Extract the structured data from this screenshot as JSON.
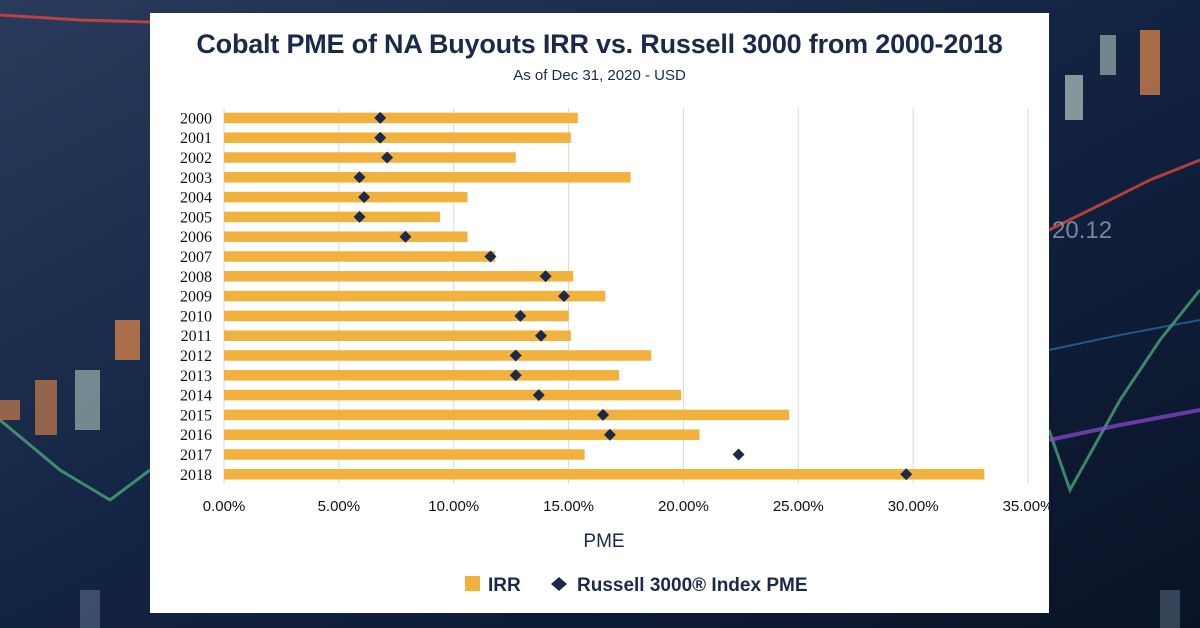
{
  "colors": {
    "irr": "#f2b13c",
    "pme": "#1b2a4a",
    "grid": "#d9d9d9",
    "title": "#1b2a4a"
  },
  "background_text": "20.12",
  "chart_data": {
    "type": "bar",
    "orientation": "horizontal",
    "title": "Cobalt PME of NA Buyouts IRR vs. Russell 3000 from 2000-2018",
    "subtitle": "As of Dec 31, 2020 - USD",
    "xlabel": "PME",
    "ylabel": "",
    "xlim": [
      0,
      35
    ],
    "xticks": [
      "0.00%",
      "5.00%",
      "10.00%",
      "15.00%",
      "20.00%",
      "25.00%",
      "30.00%",
      "35.00%"
    ],
    "categories": [
      "2000",
      "2001",
      "2002",
      "2003",
      "2004",
      "2005",
      "2006",
      "2007",
      "2008",
      "2009",
      "2010",
      "2011",
      "2012",
      "2013",
      "2014",
      "2015",
      "2016",
      "2017",
      "2018"
    ],
    "series": [
      {
        "name": "IRR",
        "kind": "bar",
        "values": [
          15.4,
          15.1,
          12.7,
          17.7,
          10.6,
          9.4,
          10.6,
          11.8,
          15.2,
          16.6,
          15.0,
          15.1,
          18.6,
          17.2,
          19.9,
          24.6,
          20.7,
          15.7,
          33.1
        ]
      },
      {
        "name": "Russell 3000® Index PME",
        "kind": "marker",
        "values": [
          6.8,
          6.8,
          7.1,
          5.9,
          6.1,
          5.9,
          7.9,
          11.6,
          14.0,
          14.8,
          12.9,
          13.8,
          12.7,
          12.7,
          13.7,
          16.5,
          16.8,
          22.4,
          29.7
        ]
      }
    ],
    "legend": [
      "IRR",
      "Russell 3000® Index PME"
    ],
    "legend_position": "bottom",
    "grid": true
  }
}
